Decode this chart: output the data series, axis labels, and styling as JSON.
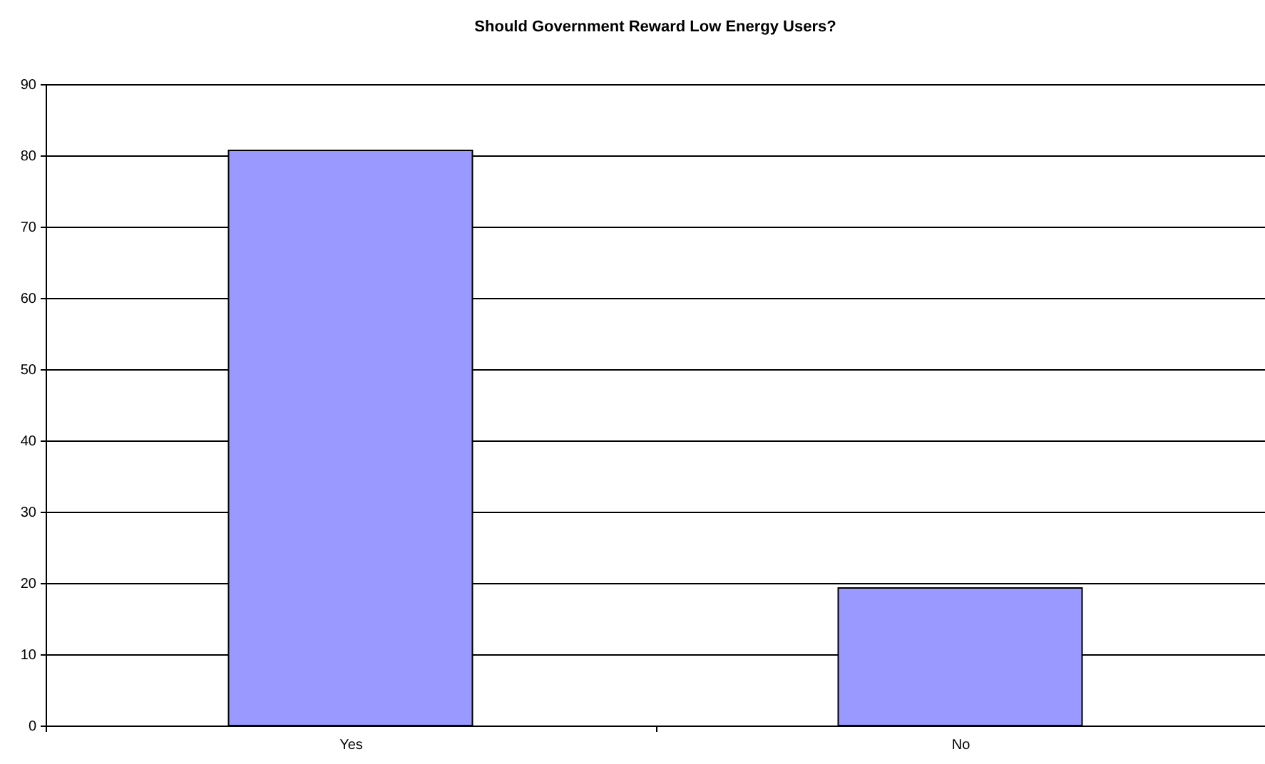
{
  "chart_data": {
    "type": "bar",
    "title": "Should Government Reward Low Energy Users?",
    "categories": [
      "Yes",
      "No"
    ],
    "values": [
      80.7,
      19.3
    ],
    "color": "#9999ff",
    "ylim": [
      0,
      90
    ],
    "yticks": [
      0,
      10,
      20,
      30,
      40,
      50,
      60,
      70,
      80,
      90
    ],
    "grid": "y"
  }
}
